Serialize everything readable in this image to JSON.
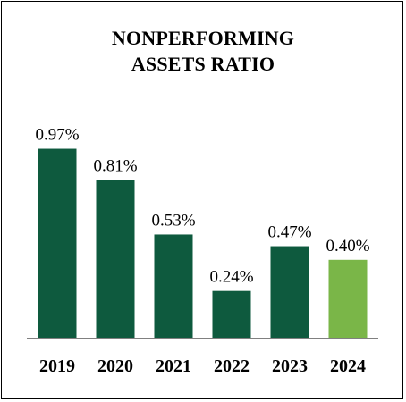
{
  "chart_data": {
    "type": "bar",
    "title_lines": [
      "NONPERFORMING",
      "ASSETS RATIO"
    ],
    "categories": [
      "2019",
      "2020",
      "2021",
      "2022",
      "2023",
      "2024"
    ],
    "values": [
      0.97,
      0.81,
      0.53,
      0.24,
      0.47,
      0.4
    ],
    "value_labels": [
      "0.97%",
      "0.81%",
      "0.53%",
      "0.24%",
      "0.47%",
      "0.40%"
    ],
    "ylim": [
      0,
      1.0
    ],
    "grid": false,
    "legend": "none",
    "colors": {
      "bar": "#0e5a3e",
      "highlight_bar": "#7ab648",
      "axis": "#808080"
    },
    "highlight_index": 5
  }
}
